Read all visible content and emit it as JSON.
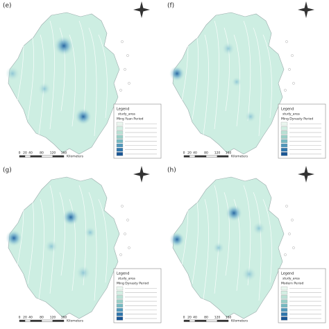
{
  "panels": [
    {
      "label": "(e)",
      "legend_title": "Legend",
      "layer": "study_area",
      "period": "Ming Yuan Period",
      "scale": {
        "ticks": [
          "0",
          "20",
          "40",
          "80",
          "120",
          "160"
        ],
        "unit": "Kilometers"
      }
    },
    {
      "label": "(f)",
      "legend_title": "Legend",
      "layer": "study_area",
      "period": "Ming Dynasty Period",
      "scale": {
        "ticks": [
          "0",
          "20",
          "40",
          "80",
          "120",
          "160"
        ],
        "unit": "Kilometers"
      }
    },
    {
      "label": "(g)",
      "legend_title": "Legend",
      "layer": "study_area",
      "period": "Ming Dynasty Period",
      "scale": {
        "ticks": [
          "0",
          "20",
          "40",
          "80",
          "120",
          "160"
        ],
        "unit": "Kilometers"
      }
    },
    {
      "label": "(h)",
      "legend_title": "Legend",
      "layer": "study_area",
      "period": "Modern Period",
      "scale": {
        "ticks": [
          "0",
          "20",
          "40",
          "80",
          "120",
          "160"
        ],
        "unit": "Kilometers"
      }
    }
  ]
}
